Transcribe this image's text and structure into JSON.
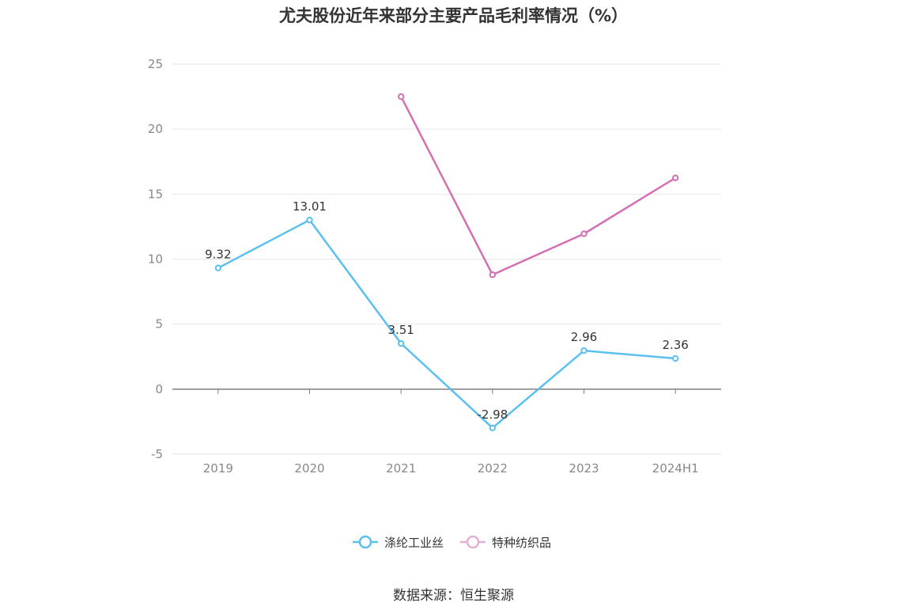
{
  "title": "尤夫股份近年来部分主要产品毛利率情况（%）",
  "source": "数据来源：恒生聚源",
  "chart_data": {
    "type": "line",
    "title": "尤夫股份近年来部分主要产品毛利率情况（%）",
    "categories": [
      "2019",
      "2020",
      "2021",
      "2022",
      "2023",
      "2024H1"
    ],
    "ylim": [
      -5,
      25
    ],
    "yticks": [
      -5,
      0,
      5,
      10,
      15,
      20,
      25
    ],
    "grid": true,
    "legend_position": "bottom-center",
    "series": [
      {
        "name": "涤纶工业丝",
        "color": "#5bc0ef",
        "values": [
          9.32,
          13.01,
          3.51,
          -2.98,
          2.96,
          2.36
        ],
        "labels": [
          "9.32",
          "13.01",
          "3.51",
          "-2.98",
          "2.96",
          "2.36"
        ]
      },
      {
        "name": "特种纺织品",
        "color": "#d46fb3",
        "legend_color": "#e5afd4",
        "values": [
          null,
          null,
          22.5,
          8.8,
          11.95,
          16.25
        ],
        "labels": []
      }
    ]
  }
}
